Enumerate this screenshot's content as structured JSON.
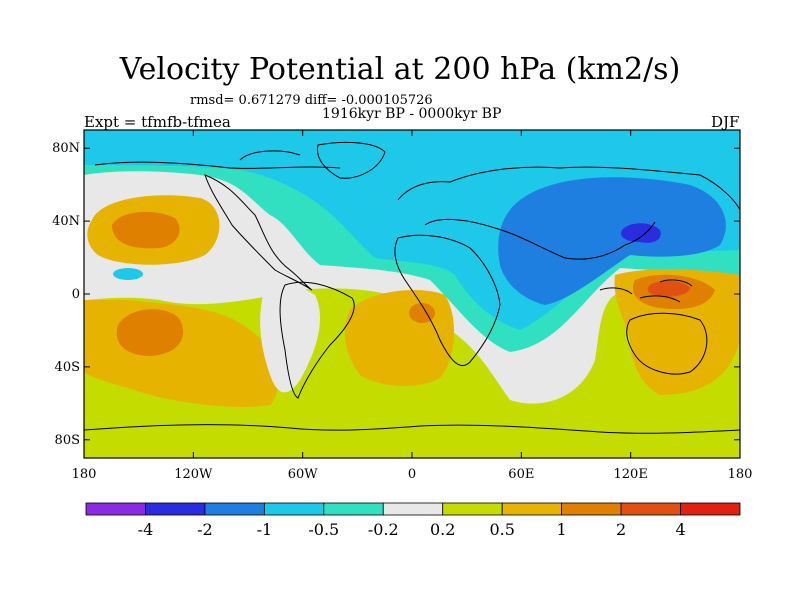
{
  "title": "Velocity Potential at 200 hPa (km2/s)",
  "subtitle_stats": "rmsd= 0.671279 diff= -0.000105726",
  "subtitle_period": "1916kyr BP - 0000kyr BP",
  "left_label": "Expt = tfmfb-tfmea",
  "right_label": "DJF",
  "lat_ticks": [
    {
      "label": "80N",
      "lat": 80
    },
    {
      "label": "40N",
      "lat": 40
    },
    {
      "label": "0",
      "lat": 0
    },
    {
      "label": "40S",
      "lat": -40
    },
    {
      "label": "80S",
      "lat": -80
    }
  ],
  "lon_ticks": [
    {
      "label": "180",
      "lon": -180
    },
    {
      "label": "120W",
      "lon": -120
    },
    {
      "label": "60W",
      "lon": -60
    },
    {
      "label": "0",
      "lon": 0
    },
    {
      "label": "60E",
      "lon": 60
    },
    {
      "label": "120E",
      "lon": 120
    },
    {
      "label": "180",
      "lon": 180
    }
  ],
  "colorbar": {
    "colors": [
      "#8a2be2",
      "#2b2be0",
      "#1e7fe0",
      "#1ec8e8",
      "#30e0c0",
      "#e8e8e8",
      "#c4dc00",
      "#e6b400",
      "#e08000",
      "#e05010",
      "#e02010"
    ],
    "labels": [
      "-4",
      "-2",
      "-1",
      "-0.5",
      "-0.2",
      "0.2",
      "0.5",
      "1",
      "2",
      "4"
    ]
  },
  "palette": {
    "lvl_blue_dark": "#2b2be0",
    "lvl_blue": "#1e7fe0",
    "lvl_cyan": "#1ec8e8",
    "lvl_teal": "#30e0c0",
    "lvl_neutral": "#e8e8e8",
    "lvl_green": "#c4dc00",
    "lvl_yellow": "#e6b400",
    "lvl_orange": "#e08000",
    "lvl_red": "#e05010"
  }
}
